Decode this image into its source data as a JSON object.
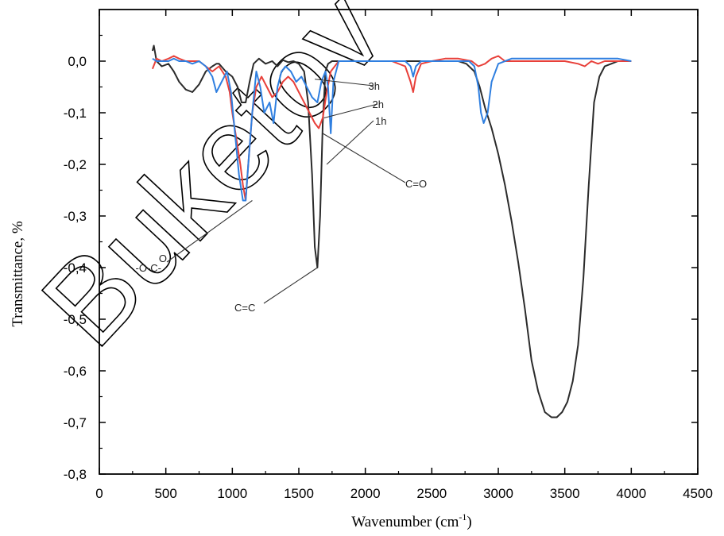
{
  "chart_data": {
    "type": "line",
    "title": "",
    "xlabel": "Wavenumber (cm",
    "xlabel_sup": "-1",
    "xlabel_tail": ")",
    "ylabel": "Transmittance, %",
    "xlim": [
      0,
      4500
    ],
    "ylim": [
      -0.8,
      0.1
    ],
    "xticks": [
      0,
      500,
      1000,
      1500,
      2000,
      2500,
      3000,
      3500,
      4000,
      4500
    ],
    "yticks": [
      0.0,
      -0.1,
      -0.2,
      -0.3,
      -0.4,
      -0.5,
      -0.6,
      -0.7,
      -0.8
    ],
    "ytick_labels": [
      "0,0",
      "-0,1",
      "-0,2",
      "-0,3",
      "-0,4",
      "-0,5",
      "-0,6",
      "-0,7",
      "-0,8"
    ],
    "xtick_labels": [
      "0",
      "500",
      "1000",
      "1500",
      "2000",
      "2500",
      "3000",
      "3500",
      "4000",
      "4500"
    ],
    "series": [
      {
        "name": "1h",
        "color": "#2b2b2b",
        "x": [
          400,
          410,
          430,
          470,
          520,
          560,
          600,
          650,
          700,
          750,
          800,
          850,
          880,
          900,
          950,
          1000,
          1040,
          1070,
          1100,
          1130,
          1160,
          1200,
          1250,
          1300,
          1340,
          1380,
          1420,
          1460,
          1500,
          1540,
          1570,
          1600,
          1620,
          1640,
          1660,
          1680,
          1700,
          1720,
          1750,
          1800,
          1900,
          2000,
          2100,
          2200,
          2300,
          2400,
          2500,
          2600,
          2700,
          2760,
          2820,
          2860,
          2900,
          2950,
          3000,
          3050,
          3100,
          3150,
          3200,
          3250,
          3300,
          3350,
          3400,
          3440,
          3480,
          3520,
          3560,
          3600,
          3640,
          3680,
          3720,
          3760,
          3800,
          3850,
          3900,
          3950,
          4000
        ],
        "values": [
          0.02,
          0.03,
          0.0,
          -0.01,
          -0.005,
          -0.02,
          -0.04,
          -0.055,
          -0.06,
          -0.045,
          -0.02,
          -0.01,
          -0.005,
          -0.005,
          -0.02,
          -0.03,
          -0.05,
          -0.08,
          -0.08,
          -0.04,
          -0.005,
          0.005,
          -0.005,
          0.0,
          -0.01,
          0.002,
          -0.002,
          0.0,
          -0.005,
          -0.02,
          -0.08,
          -0.22,
          -0.36,
          -0.4,
          -0.3,
          -0.12,
          -0.02,
          -0.005,
          0.0,
          0.0,
          0.0,
          0.0,
          0.0,
          0.0,
          0.0,
          0.0,
          0.0,
          0.0,
          0.0,
          -0.005,
          -0.02,
          -0.05,
          -0.09,
          -0.13,
          -0.18,
          -0.24,
          -0.31,
          -0.39,
          -0.48,
          -0.58,
          -0.64,
          -0.68,
          -0.69,
          -0.69,
          -0.68,
          -0.66,
          -0.62,
          -0.55,
          -0.42,
          -0.24,
          -0.08,
          -0.03,
          -0.01,
          -0.005,
          0.0,
          0.0,
          0.0
        ]
      },
      {
        "name": "2h",
        "color": "#e8403a",
        "x": [
          400,
          430,
          470,
          520,
          560,
          600,
          650,
          700,
          750,
          800,
          850,
          900,
          950,
          980,
          1000,
          1030,
          1060,
          1080,
          1100,
          1120,
          1150,
          1180,
          1220,
          1260,
          1300,
          1340,
          1380,
          1420,
          1460,
          1500,
          1540,
          1580,
          1620,
          1650,
          1680,
          1710,
          1740,
          1800,
          1900,
          2000,
          2100,
          2200,
          2300,
          2340,
          2360,
          2380,
          2420,
          2500,
          2600,
          2700,
          2800,
          2850,
          2900,
          2950,
          3000,
          3050,
          3100,
          3200,
          3300,
          3400,
          3500,
          3600,
          3650,
          3700,
          3750,
          3800,
          3900,
          4000
        ],
        "values": [
          -0.015,
          0.005,
          0.0,
          0.005,
          0.01,
          0.005,
          0.0,
          0.0,
          0.0,
          -0.01,
          -0.02,
          -0.01,
          -0.03,
          -0.06,
          -0.1,
          -0.15,
          -0.2,
          -0.24,
          -0.27,
          -0.2,
          -0.1,
          -0.05,
          -0.03,
          -0.05,
          -0.07,
          -0.06,
          -0.04,
          -0.03,
          -0.04,
          -0.06,
          -0.08,
          -0.1,
          -0.12,
          -0.13,
          -0.11,
          -0.06,
          -0.02,
          0.0,
          0.0,
          0.0,
          0.0,
          0.0,
          -0.01,
          -0.04,
          -0.06,
          -0.03,
          -0.005,
          0.0,
          0.005,
          0.005,
          0.0,
          -0.01,
          -0.005,
          0.005,
          0.01,
          0.0,
          0.0,
          0.0,
          0.0,
          0.0,
          0.0,
          -0.005,
          -0.01,
          0.0,
          -0.005,
          0.0,
          0.0,
          0.0
        ]
      },
      {
        "name": "3h",
        "color": "#2f7fe0",
        "x": [
          400,
          430,
          470,
          520,
          560,
          600,
          650,
          700,
          750,
          800,
          850,
          880,
          920,
          960,
          990,
          1020,
          1050,
          1080,
          1100,
          1120,
          1150,
          1180,
          1210,
          1240,
          1280,
          1310,
          1340,
          1370,
          1400,
          1440,
          1480,
          1520,
          1560,
          1600,
          1640,
          1670,
          1700,
          1720,
          1740,
          1760,
          1800,
          1900,
          2000,
          2100,
          2200,
          2300,
          2340,
          2360,
          2380,
          2420,
          2500,
          2600,
          2700,
          2780,
          2820,
          2850,
          2870,
          2890,
          2920,
          2950,
          3000,
          3100,
          3200,
          3400,
          3600,
          3800,
          3900,
          4000
        ],
        "values": [
          0.005,
          0.0,
          0.0,
          0.0,
          0.005,
          0.0,
          0.0,
          -0.005,
          0.0,
          -0.01,
          -0.03,
          -0.06,
          -0.04,
          -0.02,
          -0.06,
          -0.14,
          -0.22,
          -0.27,
          -0.27,
          -0.2,
          -0.1,
          -0.02,
          -0.05,
          -0.1,
          -0.08,
          -0.12,
          -0.05,
          -0.02,
          -0.01,
          -0.02,
          -0.04,
          -0.03,
          -0.05,
          -0.07,
          -0.08,
          -0.04,
          -0.02,
          -0.05,
          -0.14,
          -0.04,
          0.0,
          0.0,
          0.0,
          0.0,
          0.0,
          0.0,
          -0.01,
          -0.03,
          -0.01,
          0.0,
          0.0,
          0.0,
          0.0,
          0.0,
          -0.01,
          -0.05,
          -0.1,
          -0.12,
          -0.1,
          -0.04,
          -0.005,
          0.005,
          0.005,
          0.005,
          0.005,
          0.005,
          0.005,
          0.0
        ]
      }
    ],
    "annotations": [
      {
        "text": "3h",
        "tip_x": 1620,
        "tip_y": -0.035
      },
      {
        "text": "2h",
        "tip_x": 1690,
        "tip_y": -0.11
      },
      {
        "text": "1h",
        "tip_x": 1710,
        "tip_y": -0.2
      },
      {
        "text": "C=O",
        "tip_x": 1680,
        "tip_y": -0.14
      },
      {
        "text": "-O-C-",
        "text_extra": "O",
        "tip_x": 1150,
        "tip_y": -0.27
      },
      {
        "text": "C=C",
        "tip_x": 1640,
        "tip_y": -0.4
      }
    ],
    "watermark": "Buketov Uni"
  }
}
